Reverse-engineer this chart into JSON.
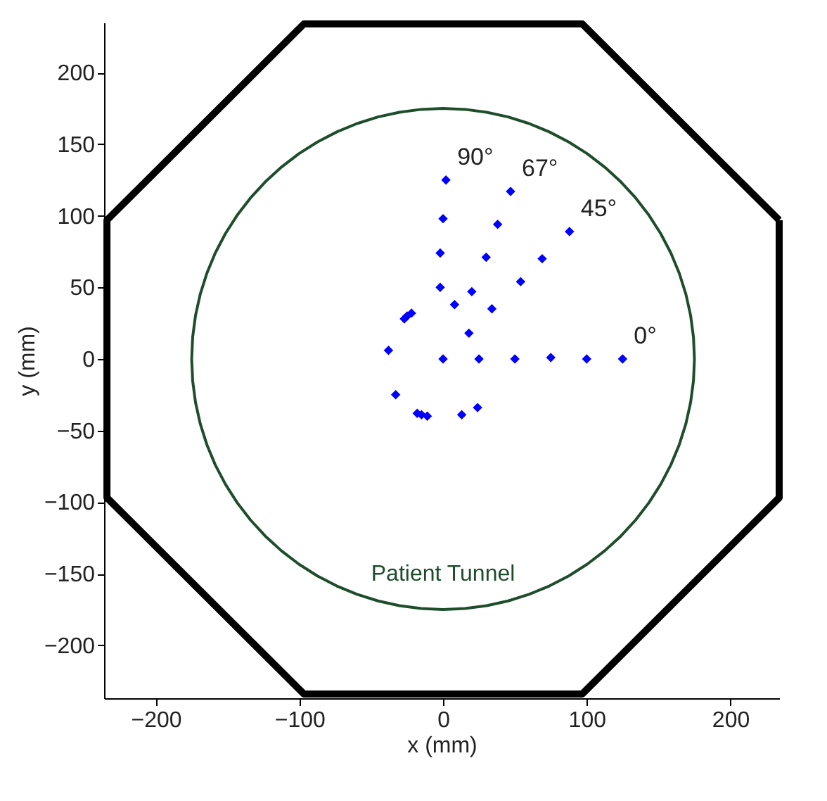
{
  "chart_data": {
    "type": "scatter",
    "xlabel": "x (mm)",
    "ylabel": "y (mm)",
    "xlim": [
      -236,
      234
    ],
    "ylim": [
      -237,
      235
    ],
    "xticks": [
      -200,
      -100,
      0,
      100,
      200
    ],
    "yticks": [
      -200,
      -150,
      -100,
      -50,
      0,
      50,
      100,
      150,
      200
    ],
    "series": [
      {
        "name": "90°",
        "color": "#0000ff",
        "marker": "diamond",
        "x": [
          2,
          0,
          -2,
          -2
        ],
        "values": [
          125,
          98,
          74,
          50
        ]
      },
      {
        "name": "67°",
        "color": "#0000ff",
        "marker": "diamond",
        "x": [
          8,
          20,
          30,
          38,
          47
        ],
        "values": [
          38,
          47,
          71,
          94,
          117
        ]
      },
      {
        "name": "45°",
        "color": "#0000ff",
        "marker": "diamond",
        "x": [
          18,
          34,
          54,
          69,
          88
        ],
        "values": [
          18,
          35,
          54,
          70,
          89
        ]
      },
      {
        "name": "0°",
        "color": "#0000ff",
        "marker": "diamond",
        "x": [
          0,
          25,
          50,
          75,
          100,
          125
        ],
        "values": [
          0,
          0,
          0,
          1,
          0,
          0
        ]
      },
      {
        "color": "#0000ff",
        "marker": "diamond",
        "x": [
          -38,
          -27,
          -25,
          -22,
          -33,
          -18,
          -15,
          -11,
          13,
          24
        ],
        "values": [
          6,
          28,
          30,
          32,
          -25,
          -38,
          -39,
          -40,
          -39,
          -34
        ]
      }
    ],
    "annotations": [
      "Patient Tunnel"
    ]
  }
}
